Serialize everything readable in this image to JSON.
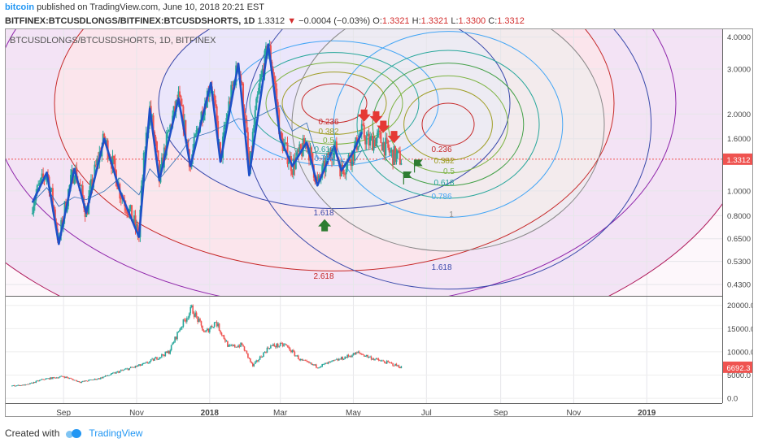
{
  "header": {
    "author": "bitcoin",
    "published": "published on TradingView.com, June 10, 2018 20:21 EST"
  },
  "ticker": {
    "symbol": "BITFINEX:BTCUSDLONGS/BITFINEX:BTCUSDSHORTS, 1D",
    "last": "1.3312",
    "arrow": "▼",
    "change": "−0.0004 (−0.03%)",
    "o_label": "O:",
    "o": "1.3321",
    "h_label": "H:",
    "h": "1.3321",
    "l_label": "L:",
    "l": "1.3300",
    "c_label": "C:",
    "c": "1.3312"
  },
  "footer": {
    "created_with": "Created with",
    "brand": "TradingView"
  },
  "colors": {
    "up": "#26a69a",
    "down": "#ef5350",
    "trend": "#1e50c8",
    "price_tag": "#ef5350"
  },
  "chart_data": [
    {
      "type": "candlestick",
      "pane": "main",
      "title": "BTCUSDLONGS/BTCUSDSHORTS, 1D, BITFINEX",
      "y_scale": "log",
      "ylim": [
        0.4,
        4.2
      ],
      "y_ticks": [
        "4.0000",
        "3.0000",
        "2.0000",
        "1.6000",
        "1.3312",
        "1.0000",
        "0.8000",
        "0.6500",
        "0.5300",
        "0.4300"
      ],
      "last_price": "1.3312",
      "x_ticks": [
        "Sep",
        "Nov",
        "2018",
        "Mar",
        "May",
        "Jul",
        "Sep",
        "Nov",
        "2019"
      ],
      "fib_circle_set_1": {
        "levels": [
          "0.236",
          "0.382",
          "0.5",
          "0.618",
          "0.786",
          "1.618",
          "2.618"
        ]
      },
      "fib_circle_set_2": {
        "levels": [
          "0.236",
          "0.382",
          "0.5",
          "0.618",
          "0.786",
          "1",
          "1.618"
        ]
      },
      "trend_zigzag": [
        {
          "date": "2017-08-06",
          "price": 0.9
        },
        {
          "date": "2017-08-18",
          "price": 1.18
        },
        {
          "date": "2017-08-28",
          "price": 0.62
        },
        {
          "date": "2017-09-10",
          "price": 1.22
        },
        {
          "date": "2017-09-20",
          "price": 0.82
        },
        {
          "date": "2017-10-05",
          "price": 1.6
        },
        {
          "date": "2017-10-18",
          "price": 1.0
        },
        {
          "date": "2017-11-03",
          "price": 0.66
        },
        {
          "date": "2017-11-12",
          "price": 2.1
        },
        {
          "date": "2017-11-20",
          "price": 1.1
        },
        {
          "date": "2017-12-06",
          "price": 2.3
        },
        {
          "date": "2017-12-16",
          "price": 1.25
        },
        {
          "date": "2018-01-02",
          "price": 2.65
        },
        {
          "date": "2018-01-10",
          "price": 1.3
        },
        {
          "date": "2018-01-25",
          "price": 3.15
        },
        {
          "date": "2018-02-03",
          "price": 1.15
        },
        {
          "date": "2018-02-19",
          "price": 3.75
        },
        {
          "date": "2018-03-01",
          "price": 1.6
        },
        {
          "date": "2018-03-11",
          "price": 1.25
        },
        {
          "date": "2018-03-23",
          "price": 1.55
        },
        {
          "date": "2018-04-01",
          "price": 1.05
        },
        {
          "date": "2018-04-15",
          "price": 1.5
        },
        {
          "date": "2018-04-21",
          "price": 1.2
        },
        {
          "date": "2018-05-01",
          "price": 1.42
        },
        {
          "date": "2018-05-08",
          "price": 1.7
        }
      ],
      "sell_arrows": [
        {
          "date": "2018-05-10",
          "price": 1.88
        },
        {
          "date": "2018-05-20",
          "price": 1.85
        },
        {
          "date": "2018-05-26",
          "price": 1.7
        },
        {
          "date": "2018-06-04",
          "price": 1.55
        }
      ],
      "buy_arrows": [
        {
          "date": "2018-04-07",
          "price": 0.77
        }
      ],
      "flags": [
        {
          "date": "2018-06-12",
          "price": 1.06
        },
        {
          "date": "2018-06-21",
          "price": 1.18
        }
      ]
    },
    {
      "type": "candlestick",
      "pane": "lower",
      "ylim": [
        -500,
        21000
      ],
      "y_ticks": [
        "20000.0",
        "15000.0",
        "10000.0",
        "5000.0",
        "0.0"
      ],
      "last_price": "6692.3",
      "anchors": [
        {
          "date": "2017-07-20",
          "price": 2700
        },
        {
          "date": "2017-08-01",
          "price": 2900
        },
        {
          "date": "2017-08-15",
          "price": 4100
        },
        {
          "date": "2017-09-01",
          "price": 4700
        },
        {
          "date": "2017-09-15",
          "price": 3500
        },
        {
          "date": "2017-10-01",
          "price": 4300
        },
        {
          "date": "2017-10-20",
          "price": 6000
        },
        {
          "date": "2017-11-08",
          "price": 7400
        },
        {
          "date": "2017-11-28",
          "price": 10000
        },
        {
          "date": "2017-12-07",
          "price": 15000
        },
        {
          "date": "2017-12-17",
          "price": 19300
        },
        {
          "date": "2017-12-28",
          "price": 14000
        },
        {
          "date": "2018-01-06",
          "price": 16500
        },
        {
          "date": "2018-01-17",
          "price": 11000
        },
        {
          "date": "2018-01-28",
          "price": 11500
        },
        {
          "date": "2018-02-06",
          "price": 6900
        },
        {
          "date": "2018-02-20",
          "price": 11200
        },
        {
          "date": "2018-03-05",
          "price": 11500
        },
        {
          "date": "2018-03-18",
          "price": 8200
        },
        {
          "date": "2018-04-01",
          "price": 6800
        },
        {
          "date": "2018-04-15",
          "price": 8000
        },
        {
          "date": "2018-05-05",
          "price": 9800
        },
        {
          "date": "2018-05-20",
          "price": 8300
        },
        {
          "date": "2018-06-01",
          "price": 7500
        },
        {
          "date": "2018-06-10",
          "price": 6692
        }
      ]
    }
  ]
}
